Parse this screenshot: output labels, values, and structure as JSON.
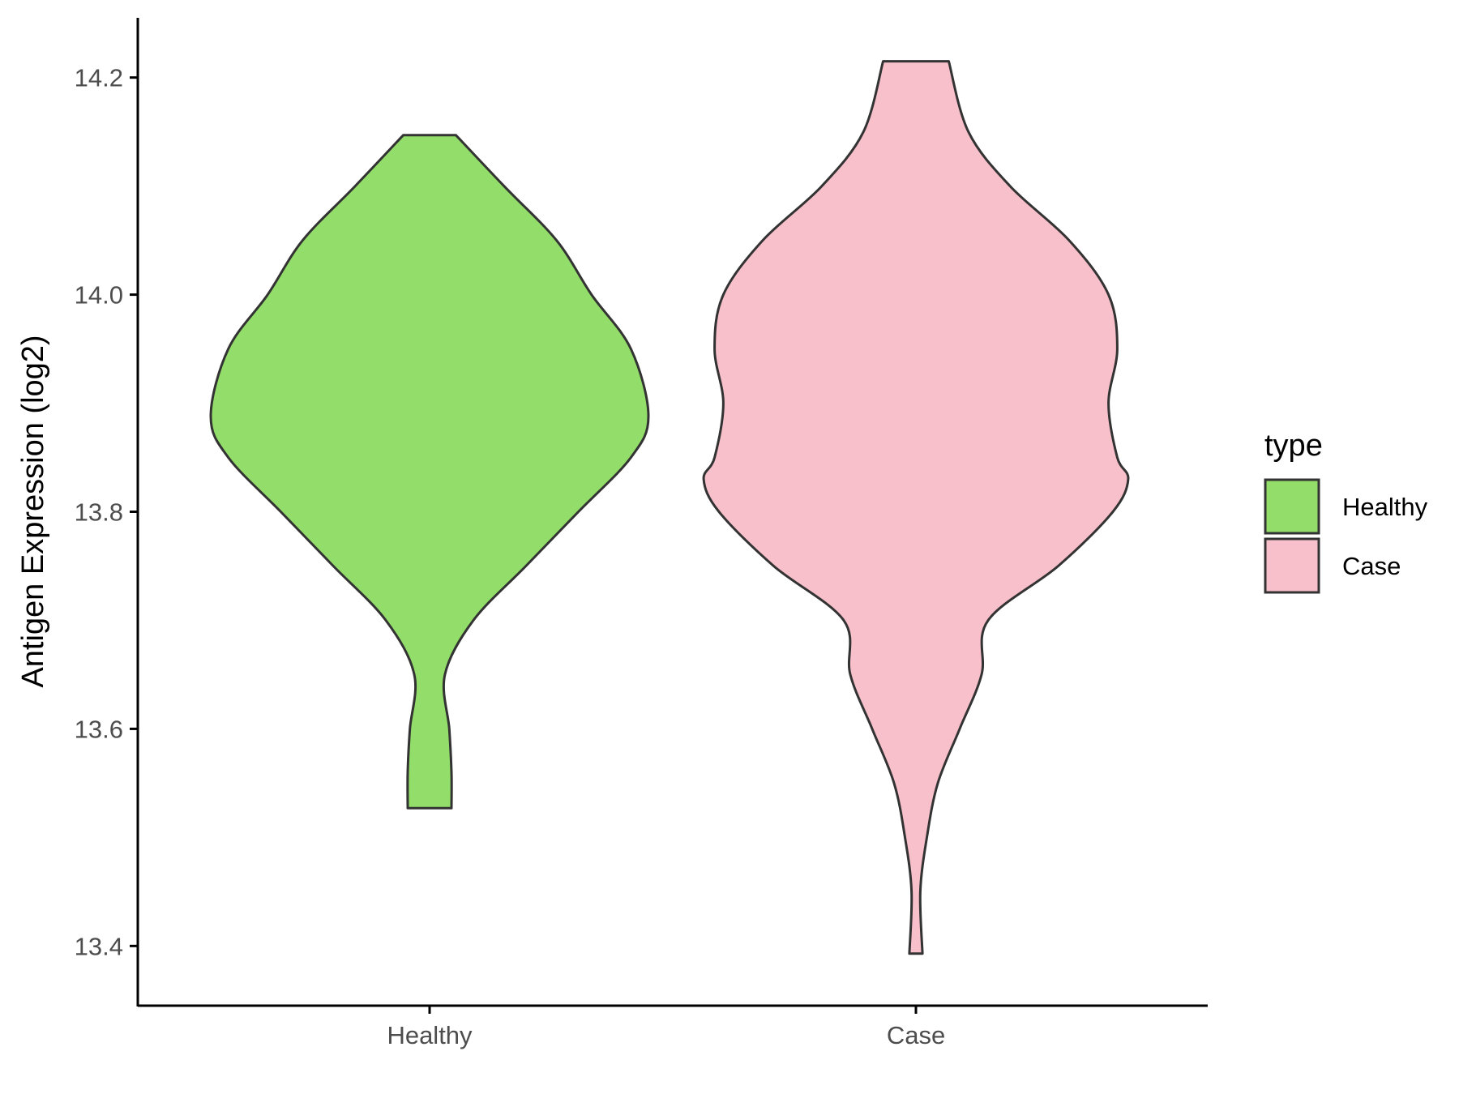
{
  "chart_data": {
    "type": "violin",
    "ylabel": "Antigen Expression (log2)",
    "xlabel": "",
    "categories": [
      "Healthy",
      "Case"
    ],
    "y_ticks": [
      "13.4",
      "13.6",
      "13.8",
      "14.0",
      "14.2"
    ],
    "ylim": [
      13.345,
      14.255
    ],
    "legend": {
      "title": "type",
      "position": "right",
      "entries": [
        "Healthy",
        "Case"
      ]
    },
    "grid": false,
    "series": [
      {
        "name": "Healthy",
        "color": "#93DD6A",
        "min": 13.527,
        "max": 14.147,
        "density_profile": [
          [
            14.147,
            0.12
          ],
          [
            14.1,
            0.34
          ],
          [
            14.05,
            0.58
          ],
          [
            14.0,
            0.74
          ],
          [
            13.95,
            0.92
          ],
          [
            13.888,
            1.0
          ],
          [
            13.85,
            0.92
          ],
          [
            13.8,
            0.68
          ],
          [
            13.75,
            0.44
          ],
          [
            13.7,
            0.2
          ],
          [
            13.65,
            0.07
          ],
          [
            13.6,
            0.09
          ],
          [
            13.56,
            0.1
          ],
          [
            13.527,
            0.1
          ]
        ]
      },
      {
        "name": "Case",
        "color": "#F7C0CB",
        "min": 13.393,
        "max": 14.215,
        "density_profile": [
          [
            14.215,
            0.15
          ],
          [
            14.15,
            0.24
          ],
          [
            14.1,
            0.43
          ],
          [
            14.05,
            0.7
          ],
          [
            14.0,
            0.88
          ],
          [
            13.95,
            0.92
          ],
          [
            13.9,
            0.88
          ],
          [
            13.85,
            0.92
          ],
          [
            13.83,
            0.97
          ],
          [
            13.8,
            0.9
          ],
          [
            13.75,
            0.65
          ],
          [
            13.7,
            0.33
          ],
          [
            13.65,
            0.3
          ],
          [
            13.6,
            0.2
          ],
          [
            13.55,
            0.1
          ],
          [
            13.5,
            0.05
          ],
          [
            13.45,
            0.02
          ],
          [
            13.393,
            0.03
          ]
        ]
      }
    ]
  }
}
